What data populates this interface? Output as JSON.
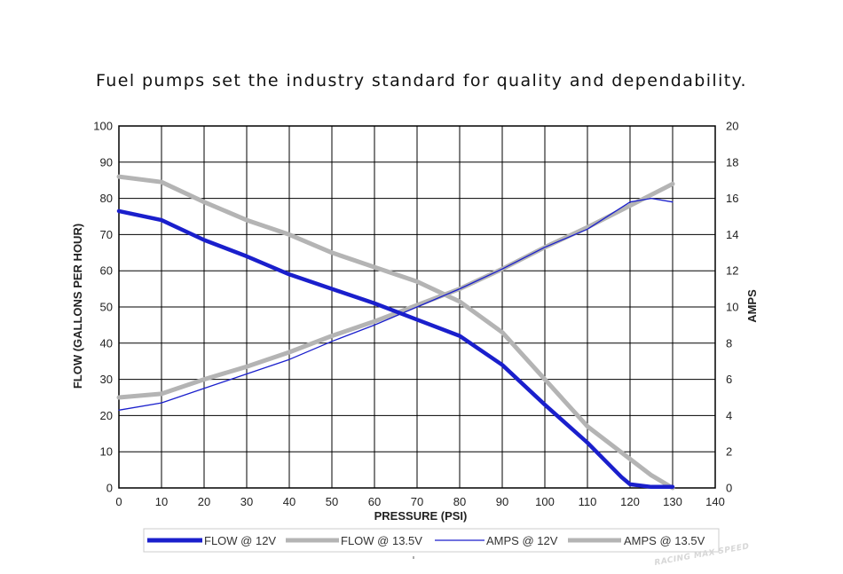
{
  "headline": "Fuel pumps set the industry standard for quality and dependability.",
  "watermark": "RACING MAX SPEED",
  "chart_data": {
    "type": "line",
    "xlabel": "PRESSURE (PSI)",
    "ylabel": "FLOW (GALLONS PER HOUR)",
    "y2label": "AMPS",
    "xlim": [
      0,
      140
    ],
    "ylim": [
      0,
      100
    ],
    "y2lim": [
      0,
      20
    ],
    "x_ticks": [
      0,
      10,
      20,
      30,
      40,
      50,
      60,
      70,
      80,
      90,
      100,
      110,
      120,
      130,
      140
    ],
    "y_ticks": [
      0,
      10,
      20,
      30,
      40,
      50,
      60,
      70,
      80,
      90,
      100
    ],
    "y2_ticks": [
      0,
      2,
      4,
      6,
      8,
      10,
      12,
      14,
      16,
      18,
      20
    ],
    "grid": true,
    "legend_position": "bottom",
    "series": [
      {
        "name": "FLOW @ 12V",
        "axis": "left",
        "color": "#1a1fcc",
        "style": "thick",
        "x": [
          0,
          10,
          20,
          30,
          40,
          50,
          60,
          70,
          80,
          90,
          100,
          110,
          118,
          120,
          125,
          130
        ],
        "y": [
          76.5,
          74,
          68.5,
          64,
          59,
          55,
          51,
          46.5,
          42,
          34,
          23,
          12.5,
          3,
          1,
          0.3,
          0.3
        ]
      },
      {
        "name": "FLOW @ 13.5V",
        "axis": "left",
        "color": "#b4b4b4",
        "style": "thick",
        "x": [
          0,
          10,
          20,
          30,
          40,
          50,
          60,
          70,
          80,
          90,
          100,
          110,
          120,
          125,
          130
        ],
        "y": [
          86,
          84.5,
          79,
          74,
          70,
          65,
          61,
          57,
          51.5,
          43,
          30,
          17,
          8,
          3.5,
          0
        ]
      },
      {
        "name": "AMPS @ 12V",
        "axis": "right",
        "color": "#1a1fcc",
        "style": "thin",
        "x": [
          0,
          10,
          20,
          30,
          40,
          50,
          60,
          70,
          80,
          90,
          100,
          110,
          120,
          125,
          130
        ],
        "y": [
          4.3,
          4.7,
          5.5,
          6.3,
          7.1,
          8.1,
          9.0,
          10.0,
          11.0,
          12.1,
          13.3,
          14.3,
          15.8,
          16,
          15.8
        ]
      },
      {
        "name": "AMPS @ 13.5V",
        "axis": "right",
        "color": "#b4b4b4",
        "style": "thick",
        "x": [
          0,
          10,
          20,
          30,
          40,
          50,
          60,
          70,
          80,
          90,
          100,
          110,
          120,
          130
        ],
        "y": [
          5.0,
          5.2,
          6.0,
          6.7,
          7.5,
          8.4,
          9.2,
          10.1,
          11.0,
          12.1,
          13.3,
          14.4,
          15.6,
          16.8
        ]
      }
    ]
  }
}
